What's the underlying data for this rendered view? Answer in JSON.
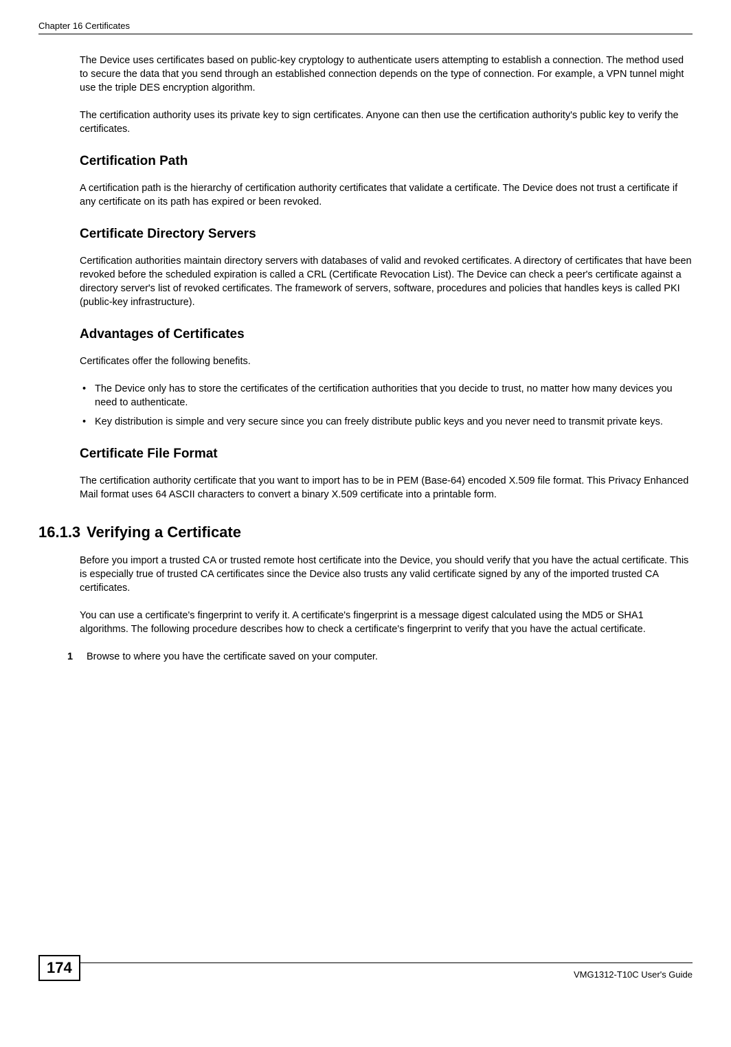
{
  "header": {
    "left": "Chapter 16 Certificates",
    "right": ""
  },
  "para1": "The Device uses certificates based on public-key cryptology to authenticate users attempting to establish a connection. The method used to secure the data that you send through an established connection depends on the type of connection. For example, a VPN tunnel might use the triple DES encryption algorithm.",
  "para2": "The certification authority uses its private key to sign certificates. Anyone can then use the certification authority's public key to verify the certificates.",
  "h3_1": "Certification Path",
  "para3": "A certification path is the hierarchy of certification authority certificates that validate a certificate. The Device does not trust a certificate if any certificate on its path has expired or been revoked.",
  "h3_2": "Certificate Directory Servers",
  "para4": "Certification authorities maintain directory servers with databases of valid and revoked certificates. A directory of certificates that have been revoked before the scheduled expiration is called a CRL (Certificate Revocation List). The Device can check a peer's certificate against a directory server's list of revoked certificates. The framework of servers, software, procedures and policies that handles keys is called PKI (public-key infrastructure).",
  "h3_3": "Advantages of Certificates",
  "para5": "Certificates offer the following benefits.",
  "bullets": [
    "The Device only has to store the certificates of the certification authorities that you decide to trust, no matter how many devices you need to authenticate.",
    "Key distribution is simple and very secure since you can freely distribute public keys and you never need to transmit private keys."
  ],
  "h3_4": "Certificate File Format",
  "para6": "The certification authority certificate that you want to import has to be in PEM (Base-64) encoded X.509 file format. This Privacy Enhanced Mail format uses 64 ASCII characters to convert a binary X.509 certificate into a printable form.",
  "h2": {
    "num": "16.1.3",
    "title": "Verifying a Certificate"
  },
  "para7": "Before you import a trusted CA or trusted remote host certificate into the Device, you should verify that you have the actual certificate. This is especially true of trusted CA certificates since the Device also trusts any valid certificate signed by any of the imported trusted CA certificates.",
  "para8": "You can use a certificate's fingerprint to verify it. A certificate's fingerprint is a message digest calculated using the MD5 or SHA1 algorithms. The following procedure describes how to check a certificate's fingerprint to verify that you have the actual certificate.",
  "step1": {
    "num": "1",
    "text": "Browse to where you have the certificate saved on your computer."
  },
  "footer": {
    "page": "174",
    "right": "VMG1312-T10C User's Guide"
  }
}
